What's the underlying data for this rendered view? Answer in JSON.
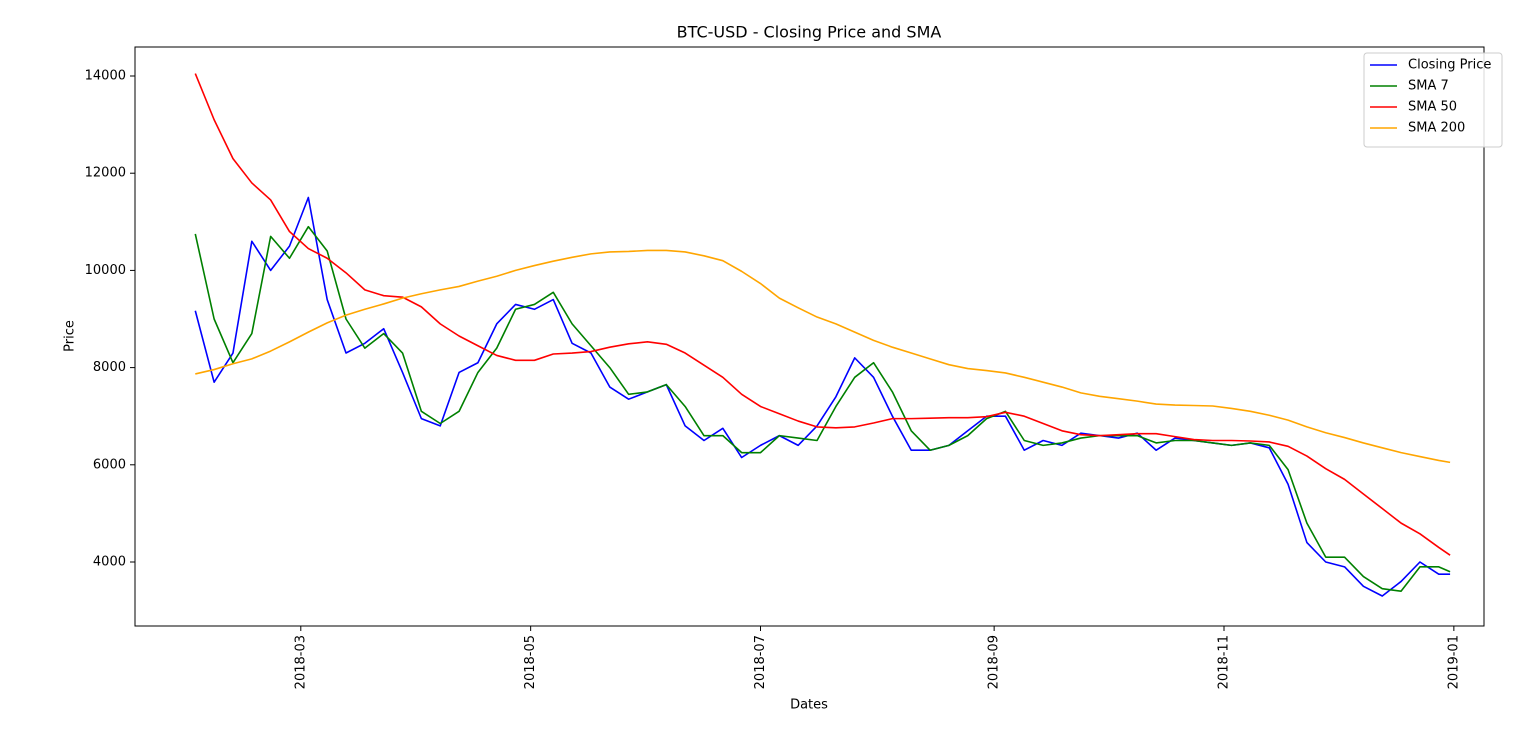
{
  "chart_data": {
    "type": "line",
    "title": "BTC-USD - Closing Price and SMA",
    "xlabel": "Dates",
    "ylabel": "Price",
    "x": [
      "2018-02-01",
      "2018-02-06",
      "2018-02-11",
      "2018-02-16",
      "2018-02-21",
      "2018-02-26",
      "2018-03-03",
      "2018-03-08",
      "2018-03-13",
      "2018-03-18",
      "2018-03-23",
      "2018-03-28",
      "2018-04-02",
      "2018-04-07",
      "2018-04-12",
      "2018-04-17",
      "2018-04-22",
      "2018-04-27",
      "2018-05-02",
      "2018-05-07",
      "2018-05-12",
      "2018-05-17",
      "2018-05-22",
      "2018-05-27",
      "2018-06-01",
      "2018-06-06",
      "2018-06-11",
      "2018-06-16",
      "2018-06-21",
      "2018-06-26",
      "2018-07-01",
      "2018-07-06",
      "2018-07-11",
      "2018-07-16",
      "2018-07-21",
      "2018-07-26",
      "2018-07-31",
      "2018-08-05",
      "2018-08-10",
      "2018-08-15",
      "2018-08-20",
      "2018-08-25",
      "2018-08-30",
      "2018-09-04",
      "2018-09-09",
      "2018-09-14",
      "2018-09-19",
      "2018-09-24",
      "2018-09-29",
      "2018-10-04",
      "2018-10-09",
      "2018-10-14",
      "2018-10-19",
      "2018-10-24",
      "2018-10-29",
      "2018-11-03",
      "2018-11-08",
      "2018-11-13",
      "2018-11-18",
      "2018-11-23",
      "2018-11-28",
      "2018-12-03",
      "2018-12-08",
      "2018-12-13",
      "2018-12-18",
      "2018-12-23",
      "2018-12-28",
      "2018-12-31"
    ],
    "series": [
      {
        "name": "Closing Price",
        "color": "#0000ff",
        "values": [
          9170,
          7700,
          8300,
          10600,
          10000,
          10500,
          11500,
          9400,
          8300,
          8500,
          8800,
          7900,
          6950,
          6800,
          7900,
          8100,
          8900,
          9300,
          9200,
          9400,
          8500,
          8300,
          7600,
          7350,
          7500,
          7650,
          6800,
          6500,
          6750,
          6150,
          6400,
          6600,
          6400,
          6800,
          7400,
          8200,
          7800,
          7000,
          6300,
          6300,
          6400,
          6700,
          7000,
          7000,
          6300,
          6500,
          6400,
          6650,
          6600,
          6550,
          6650,
          6300,
          6550,
          6500,
          6450,
          6400,
          6450,
          6350,
          5600,
          4400,
          4000,
          3900,
          3500,
          3300,
          3600,
          4000,
          3750,
          3750
        ]
      },
      {
        "name": "SMA 7",
        "color": "#008000",
        "values": [
          10750,
          9000,
          8100,
          8700,
          10700,
          10250,
          10900,
          10400,
          9000,
          8400,
          8700,
          8300,
          7100,
          6850,
          7100,
          7900,
          8400,
          9200,
          9300,
          9550,
          8900,
          8450,
          8000,
          7450,
          7500,
          7650,
          7200,
          6600,
          6600,
          6250,
          6250,
          6600,
          6550,
          6500,
          7200,
          7800,
          8100,
          7500,
          6700,
          6300,
          6400,
          6600,
          6950,
          7100,
          6500,
          6400,
          6450,
          6550,
          6600,
          6600,
          6600,
          6450,
          6500,
          6500,
          6450,
          6400,
          6450,
          6400,
          5900,
          4800,
          4100,
          4100,
          3700,
          3450,
          3400,
          3900,
          3900,
          3800
        ]
      },
      {
        "name": "SMA 50",
        "color": "#ff0000",
        "values": [
          14050,
          13100,
          12300,
          11800,
          11450,
          10800,
          10450,
          10250,
          9950,
          9600,
          9480,
          9450,
          9250,
          8900,
          8650,
          8450,
          8250,
          8150,
          8150,
          8280,
          8300,
          8330,
          8420,
          8490,
          8530,
          8480,
          8300,
          8050,
          7800,
          7450,
          7200,
          7050,
          6900,
          6780,
          6760,
          6780,
          6860,
          6950,
          6950,
          6960,
          6970,
          6970,
          6990,
          7080,
          7000,
          6850,
          6700,
          6620,
          6600,
          6620,
          6640,
          6640,
          6580,
          6520,
          6500,
          6500,
          6490,
          6470,
          6380,
          6180,
          5920,
          5700,
          5400,
          5100,
          4800,
          4580,
          4300,
          4140
        ]
      },
      {
        "name": "SMA 200",
        "color": "#ffa500",
        "values": [
          7870,
          7960,
          8080,
          8180,
          8340,
          8530,
          8730,
          8920,
          9080,
          9200,
          9310,
          9430,
          9520,
          9600,
          9670,
          9780,
          9880,
          10000,
          10100,
          10190,
          10270,
          10340,
          10380,
          10390,
          10410,
          10410,
          10380,
          10300,
          10200,
          9980,
          9730,
          9430,
          9230,
          9040,
          8900,
          8730,
          8560,
          8420,
          8300,
          8180,
          8060,
          7980,
          7940,
          7890,
          7800,
          7700,
          7600,
          7480,
          7410,
          7360,
          7310,
          7250,
          7230,
          7220,
          7210,
          7160,
          7100,
          7020,
          6920,
          6780,
          6660,
          6560,
          6450,
          6350,
          6250,
          6170,
          6090,
          6050
        ]
      }
    ],
    "xlim": [
      "2018-01-16",
      "2019-01-09"
    ],
    "xticks": [
      {
        "value": "2018-03-01",
        "label": "2018-03"
      },
      {
        "value": "2018-05-01",
        "label": "2018-05"
      },
      {
        "value": "2018-07-01",
        "label": "2018-07"
      },
      {
        "value": "2018-09-01",
        "label": "2018-09"
      },
      {
        "value": "2018-11-01",
        "label": "2018-11"
      },
      {
        "value": "2019-01-01",
        "label": "2019-01"
      }
    ],
    "ylim": [
      2683,
      14597
    ],
    "yticks": [
      4000,
      6000,
      8000,
      10000,
      12000,
      14000
    ],
    "legend": "upper right",
    "grid": false
  }
}
